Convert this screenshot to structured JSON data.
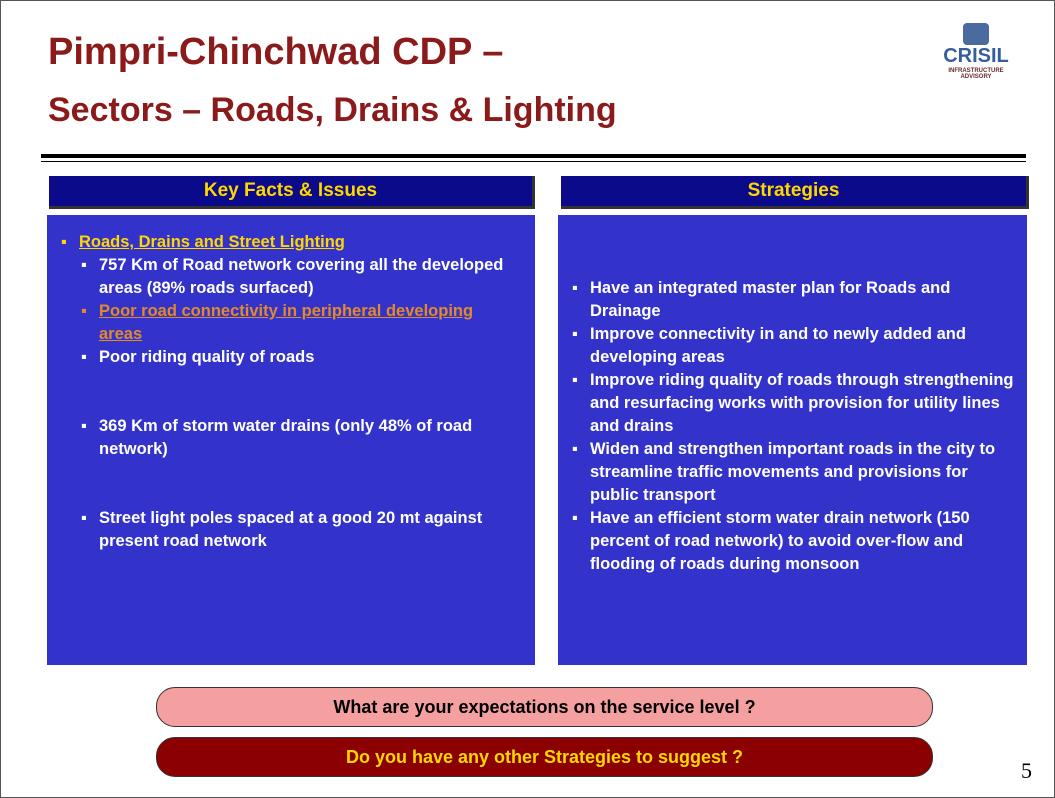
{
  "header": {
    "title_line1": "Pimpri-Chinchwad CDP –",
    "title_line2": "Sectors – Roads, Drains & Lighting",
    "logo_name": "CRISIL",
    "logo_sub1": "INFRASTRUCTURE",
    "logo_sub2": "ADVISORY"
  },
  "left_panel": {
    "heading": "Key Facts & Issues",
    "section": "Roads, Drains and Street Lighting",
    "items": [
      "757 Km of Road network covering all the developed areas (89% roads surfaced)",
      "Poor road connectivity in peripheral developing areas",
      "Poor riding quality of roads",
      "369 Km of storm water drains (only 48% of road network)",
      "Street light poles spaced at a good 20 mt against present road network"
    ]
  },
  "right_panel": {
    "heading": "Strategies",
    "items": [
      "Have an integrated master plan for Roads and Drainage",
      "Improve connectivity in and to newly added and developing areas",
      "Improve riding quality of roads through strengthening and resurfacing works with provision for utility lines and drains",
      "Widen and strengthen important roads in the city to streamline traffic movements and provisions for public transport",
      "Have an efficient storm water drain network (150 percent of road network) to avoid over-flow and flooding of roads during monsoon"
    ]
  },
  "footer": {
    "question1": "What are your expectations on the service level ?",
    "question2": "Do you have any other Strategies to suggest ?",
    "page_number": "5"
  }
}
